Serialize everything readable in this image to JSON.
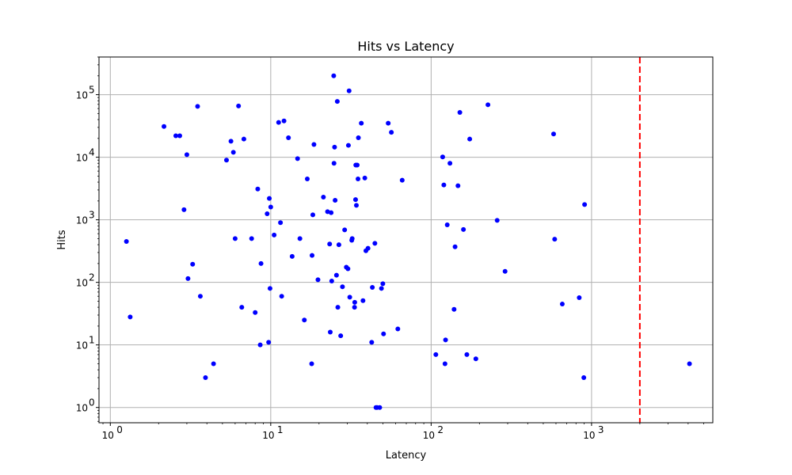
{
  "chart_data": {
    "type": "scatter",
    "title": "Hits vs Latency",
    "xlabel": "Latency",
    "ylabel": "Hits",
    "xscale": "log",
    "yscale": "log",
    "xlim": [
      0.85,
      5700
    ],
    "ylim": [
      0.57,
      400000
    ],
    "grid": true,
    "marker_color": "#0000ff",
    "x_ticks": [
      1,
      10,
      100,
      1000
    ],
    "x_tick_labels": [
      [
        "10",
        "0"
      ],
      [
        "10",
        "1"
      ],
      [
        "10",
        "2"
      ],
      [
        "10",
        "3"
      ]
    ],
    "y_ticks": [
      1,
      10,
      100,
      1000,
      10000,
      100000
    ],
    "y_tick_labels": [
      [
        "10",
        "0"
      ],
      [
        "10",
        "1"
      ],
      [
        "10",
        "2"
      ],
      [
        "10",
        "3"
      ],
      [
        "10",
        "4"
      ],
      [
        "10",
        "5"
      ]
    ],
    "reference_line": {
      "x": 2000,
      "color": "#ff0000",
      "style": "dashed"
    },
    "points": [
      [
        1.26,
        450
      ],
      [
        1.33,
        28
      ],
      [
        2.16,
        31000
      ],
      [
        2.56,
        22000
      ],
      [
        2.71,
        22000
      ],
      [
        2.88,
        1450
      ],
      [
        3.0,
        11000
      ],
      [
        3.05,
        115
      ],
      [
        3.26,
        195
      ],
      [
        3.5,
        65000
      ],
      [
        3.64,
        60
      ],
      [
        3.92,
        3
      ],
      [
        4.4,
        5
      ],
      [
        5.3,
        9000
      ],
      [
        5.65,
        18000
      ],
      [
        5.85,
        12000
      ],
      [
        6.0,
        500
      ],
      [
        6.3,
        66000
      ],
      [
        6.6,
        40
      ],
      [
        6.8,
        19500
      ],
      [
        7.6,
        500
      ],
      [
        8.0,
        33
      ],
      [
        8.3,
        3100
      ],
      [
        8.6,
        10
      ],
      [
        8.7,
        200
      ],
      [
        9.5,
        1250
      ],
      [
        9.7,
        11
      ],
      [
        9.8,
        2200
      ],
      [
        9.9,
        80
      ],
      [
        10.0,
        1600
      ],
      [
        10.5,
        570
      ],
      [
        11.2,
        36000
      ],
      [
        11.5,
        900
      ],
      [
        11.7,
        60
      ],
      [
        12.1,
        38000
      ],
      [
        12.9,
        20500
      ],
      [
        13.6,
        260
      ],
      [
        14.7,
        9500
      ],
      [
        15.2,
        500
      ],
      [
        16.2,
        25
      ],
      [
        16.9,
        4500
      ],
      [
        18.0,
        5
      ],
      [
        18.1,
        270
      ],
      [
        18.3,
        1200
      ],
      [
        18.6,
        16000
      ],
      [
        19.7,
        110
      ],
      [
        21.3,
        2300
      ],
      [
        22.6,
        1350
      ],
      [
        23.3,
        410
      ],
      [
        23.5,
        16
      ],
      [
        23.8,
        1300
      ],
      [
        24.0,
        105
      ],
      [
        24.7,
        200000
      ],
      [
        24.8,
        8000
      ],
      [
        25.0,
        14500
      ],
      [
        25.2,
        2050
      ],
      [
        25.7,
        130
      ],
      [
        26.0,
        78000
      ],
      [
        26.2,
        40
      ],
      [
        26.6,
        400
      ],
      [
        27.3,
        14
      ],
      [
        28.0,
        85
      ],
      [
        28.9,
        690
      ],
      [
        29.6,
        175
      ],
      [
        30.3,
        165
      ],
      [
        30.5,
        15500
      ],
      [
        30.8,
        115000
      ],
      [
        31.1,
        58
      ],
      [
        32.0,
        470
      ],
      [
        32.2,
        500
      ],
      [
        33.3,
        40
      ],
      [
        33.4,
        48
      ],
      [
        33.8,
        2100
      ],
      [
        33.9,
        7500
      ],
      [
        34.2,
        1700
      ],
      [
        34.6,
        7500
      ],
      [
        35.0,
        4500
      ],
      [
        35.2,
        20500
      ],
      [
        36.7,
        35000
      ],
      [
        37.6,
        51
      ],
      [
        38.6,
        4650
      ],
      [
        39.2,
        320
      ],
      [
        40.4,
        350
      ],
      [
        42.6,
        11
      ],
      [
        43.0,
        83
      ],
      [
        44.6,
        420
      ],
      [
        45.3,
        1
      ],
      [
        46.0,
        1
      ],
      [
        47.8,
        1
      ],
      [
        49.0,
        80
      ],
      [
        50.0,
        95
      ],
      [
        50.5,
        15
      ],
      [
        54.0,
        35000
      ],
      [
        56.5,
        25000
      ],
      [
        62.0,
        18
      ],
      [
        66.0,
        4300
      ],
      [
        107,
        7
      ],
      [
        118,
        10100
      ],
      [
        120,
        3600
      ],
      [
        122,
        5
      ],
      [
        123,
        12
      ],
      [
        126,
        830
      ],
      [
        131,
        8000
      ],
      [
        139,
        37
      ],
      [
        141,
        370
      ],
      [
        147,
        3500
      ],
      [
        151,
        52000
      ],
      [
        159,
        700
      ],
      [
        167,
        7
      ],
      [
        174,
        19500
      ],
      [
        190,
        6
      ],
      [
        226,
        69000
      ],
      [
        258,
        980
      ],
      [
        289,
        150
      ],
      [
        580,
        23500
      ],
      [
        589,
        490
      ],
      [
        657,
        45
      ],
      [
        838,
        57
      ],
      [
        895,
        3
      ],
      [
        905,
        1750
      ],
      [
        4080,
        5
      ]
    ]
  }
}
